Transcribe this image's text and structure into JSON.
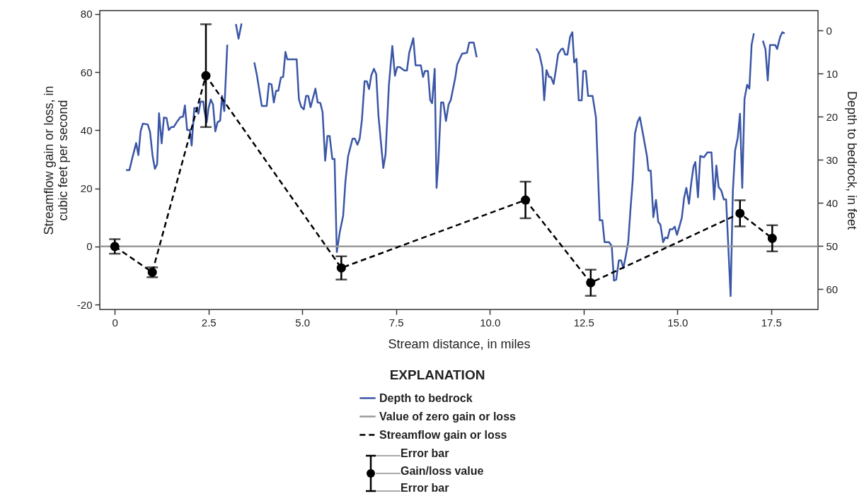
{
  "chart_data": {
    "type": "line",
    "xlabel": "Stream distance, in miles",
    "ylabel": "Streamflow gain or loss, in\ncubic feet per second",
    "y2label": "Depth to bedrock, in feet",
    "legend_title": "EXPLANATION",
    "legend": "bottom",
    "grid": false,
    "xlim": [
      -0.4,
      18.75
    ],
    "xticks": [
      0,
      2.5,
      {
        "value": 5,
        "label": "5.0"
      },
      7.5,
      {
        "value": 10,
        "label": "10.0"
      },
      12.5,
      {
        "value": 15,
        "label": "15.0"
      },
      17.5
    ],
    "ylim": [
      -21.7,
      81.2
    ],
    "yticks": [
      -20,
      0,
      20,
      40,
      60,
      80
    ],
    "y2lim": [
      64.7,
      -4.6
    ],
    "y2ticks": [
      0,
      10,
      20,
      30,
      40,
      50,
      60
    ],
    "ref_lines": [
      {
        "axis": "y",
        "value": 0,
        "label": "Value of zero gain or loss",
        "color": "#999999"
      }
    ],
    "annotations": [
      "Error bar",
      "Gain/loss value",
      "Error bar"
    ],
    "series": [
      {
        "name": "Depth to bedrock",
        "axis": "y2",
        "color": "#3a56a6",
        "line_style": "solid",
        "x": [
          0.3,
          0.39,
          0.47,
          0.57,
          0.63,
          0.69,
          0.75,
          0.88,
          0.94,
          1.01,
          1.07,
          1.13,
          1.18,
          1.25,
          1.31,
          1.38,
          1.44,
          1.51,
          1.57,
          1.65,
          1.75,
          1.82,
          1.87,
          1.93,
          2.0,
          2.05,
          2.12,
          2.19,
          2.23,
          2.29,
          2.36,
          2.39,
          2.45,
          2.5,
          2.56,
          2.62,
          2.68,
          2.74,
          2.81,
          2.86,
          2.92,
          3.0,
          3.12,
          3.23,
          3.3,
          3.38,
          3.55,
          3.72,
          3.79,
          3.92,
          4.05,
          4.11,
          4.18,
          4.24,
          4.3,
          4.36,
          4.43,
          4.49,
          4.55,
          4.6,
          4.85,
          4.91,
          4.97,
          5.04,
          5.1,
          5.16,
          5.22,
          5.35,
          5.41,
          5.48,
          5.54,
          5.61,
          5.67,
          5.73,
          5.8,
          5.86,
          5.92,
          6.0,
          6.09,
          6.15,
          6.22,
          6.34,
          6.4,
          6.47,
          6.53,
          6.59,
          6.66,
          6.72,
          6.78,
          6.84,
          6.91,
          6.97,
          7.03,
          7.16,
          7.22,
          7.31,
          7.4,
          7.47,
          7.53,
          7.6,
          7.72,
          7.79,
          7.85,
          7.96,
          8.02,
          8.16,
          8.22,
          8.27,
          8.35,
          8.41,
          8.46,
          8.53,
          8.58,
          8.63,
          8.7,
          8.76,
          8.83,
          8.9,
          8.96,
          9.08,
          9.13,
          9.26,
          9.39,
          9.45,
          9.57,
          9.65,
          10.4,
          11.24,
          11.32,
          11.4,
          11.45,
          11.51,
          11.58,
          11.63,
          11.7,
          11.76,
          11.82,
          11.9,
          11.95,
          12.01,
          12.07,
          12.14,
          12.2,
          12.25,
          12.31,
          12.37,
          12.45,
          12.49,
          12.56,
          12.62,
          12.74,
          12.83,
          12.93,
          13.0,
          13.06,
          13.18,
          13.25,
          13.31,
          13.37,
          13.44,
          13.5,
          13.56,
          13.62,
          13.69,
          13.75,
          13.81,
          13.87,
          13.94,
          14.0,
          14.09,
          14.19,
          14.23,
          14.29,
          14.36,
          14.43,
          14.49,
          14.55,
          14.62,
          14.68,
          14.74,
          14.8,
          14.87,
          14.93,
          14.99,
          15.05,
          15.12,
          15.18,
          15.24,
          15.31,
          15.37,
          15.43,
          15.48,
          15.55,
          15.61,
          15.71,
          15.8,
          15.91,
          15.98,
          16.04,
          16.1,
          16.17,
          16.24,
          16.3,
          16.42,
          16.48,
          16.54,
          16.61,
          16.67,
          16.73,
          16.79,
          16.86,
          16.92,
          16.98,
          17.04,
          17.16,
          17.28,
          17.35,
          17.41,
          17.47,
          17.61,
          17.66,
          17.74,
          17.8,
          17.86
        ],
        "values": [
          32.4,
          32.4,
          29.5,
          26.1,
          28.9,
          23.3,
          21.6,
          21.8,
          23.5,
          29.2,
          32.1,
          31.0,
          19.2,
          26.2,
          20.2,
          20.3,
          23.1,
          22.4,
          22.4,
          21.3,
          20.1,
          20.0,
          17.4,
          23.1,
          23.1,
          26.7,
          18.0,
          18.0,
          19.3,
          16.5,
          16.5,
          18.6,
          21.3,
          18.0,
          16.0,
          17.2,
          23.4,
          21.3,
          20.9,
          15.2,
          18.7,
          3.3,
          null,
          -1.5,
          1.9,
          -1.6,
          null,
          7.4,
          10.4,
          17.5,
          17.5,
          12.3,
          12.5,
          16.7,
          14.0,
          14.0,
          10.9,
          10.8,
          5.0,
          6.7,
          6.7,
          16.0,
          17.7,
          18.3,
          15.2,
          15.2,
          17.8,
          13.5,
          16.7,
          16.8,
          18.9,
          30.2,
          24.5,
          24.5,
          29.8,
          29.8,
          51.4,
          46.7,
          42.9,
          35.0,
          29.2,
          25.1,
          25.1,
          26.5,
          25.1,
          20.7,
          11.8,
          11.8,
          13.6,
          10.4,
          8.9,
          10.1,
          19.7,
          31.9,
          28.7,
          12.6,
          3.6,
          10.5,
          8.5,
          8.5,
          9.3,
          9.3,
          5.2,
          1.8,
          8.1,
          8.1,
          10.8,
          9.4,
          9.4,
          16.1,
          16.9,
          8.9,
          36.5,
          30.1,
          16.7,
          16.7,
          21.0,
          17.2,
          16.1,
          10.9,
          7.9,
          5.4,
          5.2,
          2.8,
          2.8,
          6.2,
          null,
          4.2,
          5.4,
          8.6,
          16.2,
          9.2,
          10.8,
          10.8,
          12.4,
          9.2,
          5.5,
          4.4,
          4.2,
          5.6,
          5.6,
          1.5,
          0.4,
          7.4,
          6.6,
          16.2,
          16.2,
          9.4,
          9.4,
          15.2,
          15.2,
          20.2,
          44.0,
          44.0,
          49.1,
          49.1,
          50.0,
          58.0,
          57.8,
          53.3,
          53.3,
          55.1,
          52.5,
          49.1,
          41.5,
          34.7,
          23.9,
          21.2,
          20.1,
          24.3,
          29.2,
          32.5,
          32.5,
          43.3,
          39.3,
          44.4,
          45.1,
          49.1,
          48.0,
          48.2,
          46.1,
          46.1,
          45.5,
          47.4,
          45.6,
          43.4,
          38.8,
          36.5,
          40.2,
          35.4,
          31.6,
          30.5,
          38.7,
          29.1,
          29.4,
          28.3,
          28.3,
          39.2,
          31.3,
          36.3,
          37.1,
          39.2,
          39.2,
          61.6,
          37.2,
          27.8,
          24.9,
          19.3,
          36.5,
          15.9,
          12.6,
          13.5,
          3.3,
          0.7,
          null,
          2.4,
          4.4,
          11.6,
          3.4,
          3.4,
          4.3,
          1.5,
          0.4,
          0.7
        ]
      },
      {
        "name": "Streamflow gain or loss",
        "color": "#000000",
        "line_style": "dashed",
        "marker": "circle",
        "x": [
          0,
          1.0,
          2.43,
          6.04,
          10.95,
          12.69,
          16.67,
          17.53
        ],
        "values": [
          0,
          -8.9,
          58.8,
          -7.4,
          16.0,
          -12.5,
          11.4,
          2.8
        ],
        "errors": [
          2.5,
          1.7,
          17.7,
          4.0,
          6.3,
          4.5,
          4.5,
          4.5
        ]
      }
    ]
  }
}
